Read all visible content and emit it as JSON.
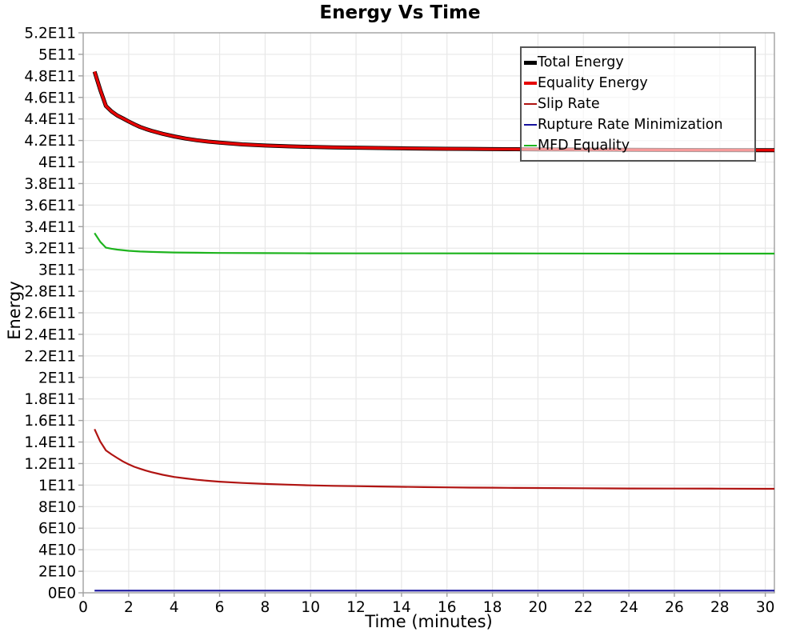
{
  "chart_data": {
    "type": "line",
    "title": "Energy Vs Time",
    "xlabel": "Time (minutes)",
    "ylabel": "Energy",
    "xlim": [
      0,
      30.4
    ],
    "ylim": [
      0,
      520000000000.0
    ],
    "grid": true,
    "legend_position": "top-right",
    "x_ticks": {
      "values": [
        0,
        2,
        4,
        6,
        8,
        10,
        12,
        14,
        16,
        18,
        20,
        22,
        24,
        26,
        28,
        30
      ],
      "labels": [
        "0",
        "2",
        "4",
        "6",
        "8",
        "10",
        "12",
        "14",
        "16",
        "18",
        "20",
        "22",
        "24",
        "26",
        "28",
        "30"
      ]
    },
    "y_ticks": {
      "values": [
        0,
        20000000000.0,
        40000000000.0,
        60000000000.0,
        80000000000.0,
        100000000000.0,
        120000000000.0,
        140000000000.0,
        160000000000.0,
        180000000000.0,
        200000000000.0,
        220000000000.0,
        240000000000.0,
        260000000000.0,
        280000000000.0,
        300000000000.0,
        320000000000.0,
        340000000000.0,
        360000000000.0,
        380000000000.0,
        400000000000.0,
        420000000000.0,
        440000000000.0,
        460000000000.0,
        480000000000.0,
        500000000000.0,
        520000000000.0
      ],
      "labels": [
        "0E0",
        "2E10",
        "4E10",
        "6E10",
        "8E10",
        "1E11",
        "1.2E11",
        "1.4E11",
        "1.6E11",
        "1.8E11",
        "2E11",
        "2.2E11",
        "2.4E11",
        "2.6E11",
        "2.8E11",
        "3E11",
        "3.2E11",
        "3.4E11",
        "3.6E11",
        "3.8E11",
        "4E11",
        "4.2E11",
        "4.4E11",
        "4.6E11",
        "4.8E11",
        "5E11",
        "5.2E11"
      ]
    },
    "series": [
      {
        "name": "Total Energy",
        "color": "#000000",
        "width": 5,
        "points": [
          [
            0.5,
            484000000000.0
          ],
          [
            0.75,
            467000000000.0
          ],
          [
            1,
            452000000000.0
          ],
          [
            1.25,
            447000000000.0
          ],
          [
            1.5,
            443200000000.0
          ],
          [
            1.75,
            440500000000.0
          ],
          [
            2,
            437700000000.0
          ],
          [
            2.25,
            435000000000.0
          ],
          [
            2.5,
            432600000000.0
          ],
          [
            2.75,
            430700000000.0
          ],
          [
            3,
            429000000000.0
          ],
          [
            3.5,
            426200000000.0
          ],
          [
            4,
            423800000000.0
          ],
          [
            4.5,
            421800000000.0
          ],
          [
            5,
            420200000000.0
          ],
          [
            5.5,
            419000000000.0
          ],
          [
            6,
            418000000000.0
          ],
          [
            7,
            416400000000.0
          ],
          [
            8,
            415300000000.0
          ],
          [
            9,
            414600000000.0
          ],
          [
            10,
            414100000000.0
          ],
          [
            11,
            413600000000.0
          ],
          [
            12,
            413300000000.0
          ],
          [
            13,
            413000000000.0
          ],
          [
            14,
            412700000000.0
          ],
          [
            15,
            412500000000.0
          ],
          [
            16,
            412300000000.0
          ],
          [
            17,
            412200000000.0
          ],
          [
            18,
            412000000000.0
          ],
          [
            19,
            411900000000.0
          ],
          [
            20,
            411800000000.0
          ],
          [
            22,
            411600000000.0
          ],
          [
            24,
            411400000000.0
          ],
          [
            26,
            411200000000.0
          ],
          [
            28,
            411100000000.0
          ],
          [
            30,
            411000000000.0
          ],
          [
            30.4,
            411000000000.0
          ]
        ]
      },
      {
        "name": "Equality Energy",
        "color": "#E60404",
        "width": 3.4,
        "points": [
          [
            0.5,
            484000000000.0
          ],
          [
            0.75,
            467000000000.0
          ],
          [
            1,
            452000000000.0
          ],
          [
            1.25,
            447000000000.0
          ],
          [
            1.5,
            443200000000.0
          ],
          [
            1.75,
            440500000000.0
          ],
          [
            2,
            437700000000.0
          ],
          [
            2.25,
            435000000000.0
          ],
          [
            2.5,
            432600000000.0
          ],
          [
            2.75,
            430700000000.0
          ],
          [
            3,
            429000000000.0
          ],
          [
            3.5,
            426200000000.0
          ],
          [
            4,
            423800000000.0
          ],
          [
            4.5,
            421800000000.0
          ],
          [
            5,
            420200000000.0
          ],
          [
            5.5,
            419000000000.0
          ],
          [
            6,
            418000000000.0
          ],
          [
            7,
            416400000000.0
          ],
          [
            8,
            415300000000.0
          ],
          [
            9,
            414600000000.0
          ],
          [
            10,
            414100000000.0
          ],
          [
            11,
            413600000000.0
          ],
          [
            12,
            413300000000.0
          ],
          [
            13,
            413000000000.0
          ],
          [
            14,
            412700000000.0
          ],
          [
            15,
            412500000000.0
          ],
          [
            16,
            412300000000.0
          ],
          [
            17,
            412200000000.0
          ],
          [
            18,
            412000000000.0
          ],
          [
            19,
            411900000000.0
          ],
          [
            20,
            411800000000.0
          ],
          [
            22,
            411600000000.0
          ],
          [
            24,
            411400000000.0
          ],
          [
            26,
            411200000000.0
          ],
          [
            28,
            411100000000.0
          ],
          [
            30,
            411000000000.0
          ],
          [
            30.4,
            411000000000.0
          ]
        ]
      },
      {
        "name": "Slip Rate",
        "color": "#B01412",
        "width": 2.2,
        "points": [
          [
            0.5,
            152000000000.0
          ],
          [
            0.75,
            140500000000.0
          ],
          [
            1,
            132200000000.0
          ],
          [
            1.25,
            128500000000.0
          ],
          [
            1.5,
            125200000000.0
          ],
          [
            1.75,
            122000000000.0
          ],
          [
            2,
            119300000000.0
          ],
          [
            2.25,
            117000000000.0
          ],
          [
            2.5,
            115200000000.0
          ],
          [
            2.75,
            113500000000.0
          ],
          [
            3,
            112000000000.0
          ],
          [
            3.5,
            109600000000.0
          ],
          [
            4,
            107600000000.0
          ],
          [
            4.5,
            106200000000.0
          ],
          [
            5,
            105000000000.0
          ],
          [
            5.5,
            104000000000.0
          ],
          [
            6,
            103200000000.0
          ],
          [
            7,
            102000000000.0
          ],
          [
            8,
            101100000000.0
          ],
          [
            9,
            100400000000.0
          ],
          [
            10,
            99800000000.0
          ],
          [
            11,
            99300000000.0
          ],
          [
            12,
            99000000000.0
          ],
          [
            13,
            98700000000.0
          ],
          [
            14,
            98400000000.0
          ],
          [
            15,
            98100000000.0
          ],
          [
            16,
            97900000000.0
          ],
          [
            17,
            97700000000.0
          ],
          [
            18,
            97600000000.0
          ],
          [
            19,
            97400000000.0
          ],
          [
            20,
            97300000000.0
          ],
          [
            22,
            97100000000.0
          ],
          [
            24,
            96900000000.0
          ],
          [
            26,
            96800000000.0
          ],
          [
            28,
            96700000000.0
          ],
          [
            30,
            96600000000.0
          ],
          [
            30.4,
            96600000000.0
          ]
        ]
      },
      {
        "name": "Rupture Rate Minimization",
        "color": "#16129E",
        "width": 2.2,
        "points": [
          [
            0.5,
            2000000000.0
          ],
          [
            30.4,
            2000000000.0
          ]
        ]
      },
      {
        "name": "MFD Equality",
        "color": "#1EB41E",
        "width": 2.2,
        "points": [
          [
            0.5,
            334000000000.0
          ],
          [
            0.75,
            326000000000.0
          ],
          [
            1,
            320500000000.0
          ],
          [
            1.25,
            319500000000.0
          ],
          [
            1.5,
            318700000000.0
          ],
          [
            2,
            317600000000.0
          ],
          [
            2.5,
            316900000000.0
          ],
          [
            3,
            316500000000.0
          ],
          [
            4,
            316000000000.0
          ],
          [
            5,
            315800000000.0
          ],
          [
            6,
            315600000000.0
          ],
          [
            8,
            315400000000.0
          ],
          [
            10,
            315300000000.0
          ],
          [
            12,
            315200000000.0
          ],
          [
            15,
            315200000000.0
          ],
          [
            20,
            315100000000.0
          ],
          [
            25,
            315000000000.0
          ],
          [
            30,
            315000000000.0
          ],
          [
            30.4,
            315000000000.0
          ]
        ]
      }
    ],
    "legend": [
      {
        "label": "Total Energy",
        "color": "#000000",
        "swatch_height": 5
      },
      {
        "label": "Equality Energy",
        "color": "#E60404",
        "swatch_height": 4
      },
      {
        "label": "Slip Rate",
        "color": "#B01412",
        "swatch_height": 2
      },
      {
        "label": "Rupture Rate Minimization",
        "color": "#16129E",
        "swatch_height": 2
      },
      {
        "label": "MFD Equality",
        "color": "#1EB41E",
        "swatch_height": 2
      }
    ],
    "style_colors": {
      "grid": "#E8E8E8",
      "frame": "#A0A0A0",
      "tick": "#A0A0A0",
      "text": "#000000",
      "legend_border": "#555555"
    }
  }
}
